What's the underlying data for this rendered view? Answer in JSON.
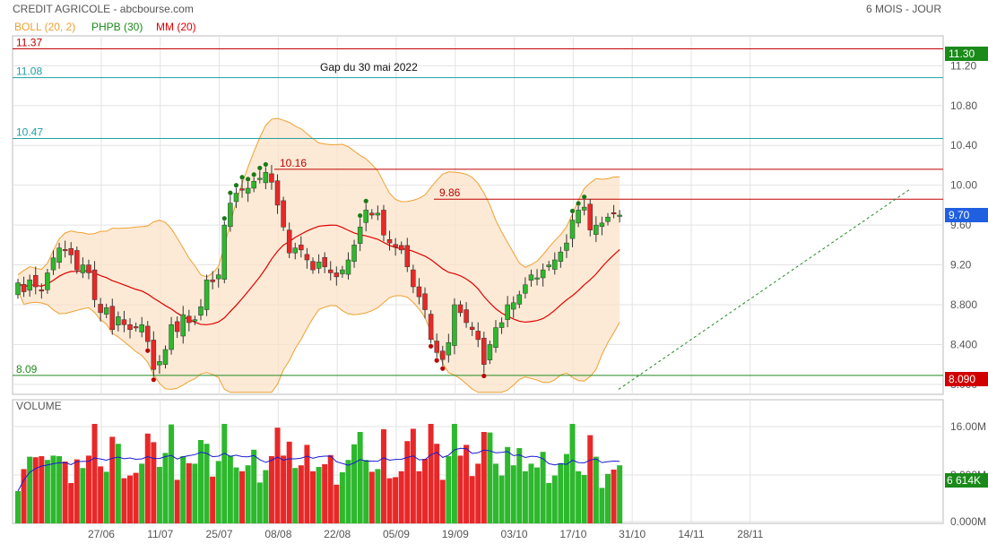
{
  "header": {
    "title": "CREDIT AGRICOLE - abcbourse.com",
    "period": "6 MOIS - JOUR"
  },
  "legend": [
    {
      "label": "BOLL (20, 2)",
      "color": "#f0a030"
    },
    {
      "label": "PHPB (30)",
      "color": "#1a8a1a"
    },
    {
      "label": "MM (20)",
      "color": "#e00000"
    }
  ],
  "colors": {
    "up": "#2db82d",
    "down": "#e82828",
    "ma": "#e00000",
    "band_line": "#f0a030",
    "band_fill": "#fbe3c8",
    "resistance": "#c00000",
    "gap_line": "#20a0a0",
    "support": "#208a20",
    "volume_ma": "#1a1ad0",
    "price_tag": "#1a8a1a",
    "last_tag": "#2060e0",
    "support_tag": "#d00000"
  },
  "chart_data": [
    {
      "type": "candlestick",
      "y_axis": {
        "min": 7.9,
        "max": 11.5,
        "ticks": [
          "11.20",
          "10.80",
          "10.40",
          "10.00",
          "9.60",
          "9.20",
          "8.800",
          "8.400",
          "8.000"
        ]
      },
      "x_ticks": [
        "27/06",
        "11/07",
        "25/07",
        "08/08",
        "22/08",
        "05/09",
        "19/09",
        "03/10",
        "17/10",
        "31/10",
        "14/11",
        "28/11"
      ],
      "levels": [
        {
          "label": "11.37",
          "value": 11.37,
          "kind": "resistance"
        },
        {
          "label": "11.08",
          "value": 11.08,
          "kind": "gap"
        },
        {
          "label": "10.47",
          "value": 10.47,
          "kind": "gap"
        },
        {
          "label": "10.16",
          "value": 10.16,
          "kind": "resistance_partial"
        },
        {
          "label": "9.86",
          "value": 9.86,
          "kind": "resistance_partial"
        },
        {
          "label": "8.09",
          "value": 8.09,
          "kind": "support"
        }
      ],
      "annotation": "Gap du 30 mai 2022",
      "price_tags": {
        "top": "11.30",
        "last": "9.70",
        "bottom": "8.090"
      },
      "close": [
        9.02,
        8.93,
        9.05,
        8.98,
        8.95,
        9.12,
        9.27,
        9.37,
        9.35,
        9.3,
        9.15,
        9.2,
        9.12,
        8.85,
        8.72,
        8.77,
        8.55,
        8.68,
        8.6,
        8.55,
        8.57,
        8.6,
        8.43,
        8.15,
        8.23,
        8.35,
        8.6,
        8.53,
        8.7,
        8.62,
        8.65,
        8.78,
        9.05,
        9.03,
        9.1,
        9.6,
        9.82,
        9.92,
        9.95,
        9.97,
        10.04,
        10.07,
        10.13,
        10.03,
        9.8,
        9.58,
        9.32,
        9.37,
        9.35,
        9.25,
        9.15,
        9.23,
        9.18,
        9.12,
        9.08,
        9.15,
        9.25,
        9.4,
        9.58,
        9.75,
        9.7,
        9.72,
        9.5,
        9.42,
        9.38,
        9.35,
        9.18,
        8.98,
        8.88,
        8.75,
        8.45,
        8.32,
        8.25,
        8.42,
        8.8,
        8.72,
        8.62,
        8.55,
        8.45,
        8.2,
        8.4,
        8.57,
        8.62,
        8.8,
        8.82,
        8.9,
        9.0,
        9.1,
        9.07,
        9.15,
        9.2,
        9.25,
        9.33,
        9.42,
        9.65,
        9.75,
        9.78,
        9.55,
        9.6,
        9.62,
        9.68,
        9.72,
        9.7
      ],
      "volume": {
        "y_ticks": [
          "16.00M",
          "8.000M",
          "0.000M"
        ],
        "last_label": "6 614K"
      }
    }
  ]
}
